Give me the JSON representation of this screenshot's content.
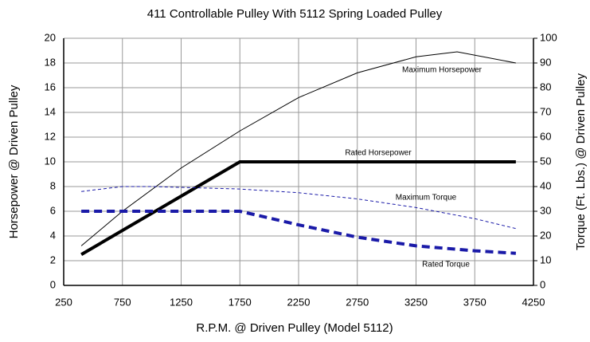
{
  "chart_data": {
    "type": "line",
    "title": "411 Controllable Pulley With 5112 Spring Loaded Pulley",
    "x_label": "R.P.M. @ Driven Pulley (Model 5112)",
    "y_label": "Horsepower @ Driven Pulley",
    "y2_label": "Torque (Ft. Lbs.) @ Driven Pulley",
    "xlim": [
      250,
      4250
    ],
    "xticks": [
      250,
      750,
      1250,
      1750,
      2250,
      2750,
      3250,
      3750,
      4250
    ],
    "ylim": [
      0,
      20
    ],
    "yticks": [
      0,
      2,
      4,
      6,
      8,
      10,
      12,
      14,
      16,
      18,
      20
    ],
    "y2lim": [
      0,
      100
    ],
    "y2ticks": [
      0,
      10,
      20,
      30,
      40,
      50,
      60,
      70,
      80,
      90,
      100
    ],
    "grid": true,
    "series": [
      {
        "name": "Maximum Horsepower",
        "color": "#000000",
        "axis": "y",
        "width": 1,
        "dashed": false,
        "x": [
          400,
          750,
          1250,
          1750,
          2250,
          2750,
          3250,
          3600,
          4100
        ],
        "values": [
          3.2,
          6,
          9.5,
          12.5,
          15.2,
          17.2,
          18.5,
          18.9,
          18
        ]
      },
      {
        "name": "Rated Horsepower",
        "color": "#000000",
        "axis": "y",
        "width": 4,
        "dashed": false,
        "x": [
          400,
          1750,
          4100
        ],
        "values": [
          2.5,
          10,
          10
        ]
      },
      {
        "name": "Maximum Torque",
        "color": "#1a1aa8",
        "axis": "y2",
        "width": 1,
        "dashed": true,
        "x": [
          400,
          750,
          1000,
          1750,
          2250,
          2750,
          3250,
          3750,
          4100
        ],
        "values": [
          38,
          40,
          40,
          39,
          37.5,
          35,
          31.5,
          27,
          23
        ]
      },
      {
        "name": "Rated Torque",
        "color": "#1a1aa8",
        "axis": "y2",
        "width": 4,
        "dashed": true,
        "x": [
          400,
          1750,
          2250,
          2750,
          3250,
          3750,
          4100
        ],
        "values": [
          30,
          30,
          24.5,
          19.5,
          16,
          14,
          13
        ]
      }
    ]
  }
}
